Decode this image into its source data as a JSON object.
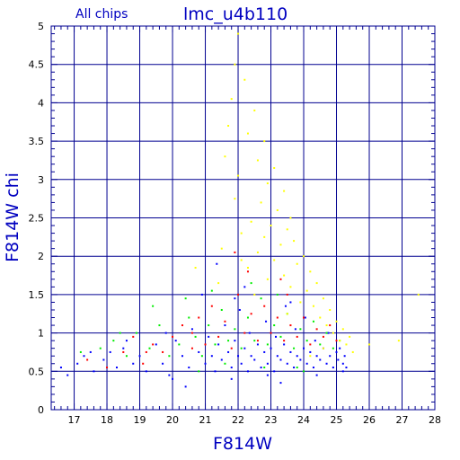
{
  "chart_data": {
    "type": "scatter",
    "title": "lmc_u4b110",
    "subtitle": "All chips",
    "xlabel": "F814W",
    "ylabel": "F814W  chi",
    "xlim": [
      16.3,
      28
    ],
    "ylim": [
      0,
      5
    ],
    "x_ticks": [
      17,
      18,
      19,
      20,
      21,
      22,
      23,
      24,
      25,
      26,
      27,
      28
    ],
    "y_ticks": [
      0,
      0.5,
      1,
      1.5,
      2,
      2.5,
      3,
      3.5,
      4,
      4.5,
      5
    ],
    "x_tick_labels": [
      "17",
      "18",
      "19",
      "20",
      "21",
      "22",
      "23",
      "24",
      "25",
      "26",
      "27",
      "28"
    ],
    "y_tick_labels": [
      "0",
      "0.5",
      "1",
      "1.5",
      "2",
      "2.5",
      "3",
      "3.5",
      "4",
      "4.5",
      "5"
    ],
    "grid": true,
    "colors": {
      "frame": "#000090",
      "grid": "#000090",
      "text": "#0000c0",
      "blue": "#0000ff",
      "green": "#00ee00",
      "red": "#ff0000",
      "yellow": "#ffff00"
    },
    "series": [
      {
        "color": "#0000ff",
        "points": [
          [
            16.6,
            0.55
          ],
          [
            16.8,
            0.45
          ],
          [
            17.1,
            0.6
          ],
          [
            17.3,
            0.7
          ],
          [
            17.6,
            0.5
          ],
          [
            17.9,
            0.65
          ],
          [
            18.1,
            0.75
          ],
          [
            18.3,
            0.55
          ],
          [
            18.5,
            0.8
          ],
          [
            18.8,
            0.6
          ],
          [
            19.0,
            0.7
          ],
          [
            19.2,
            0.5
          ],
          [
            19.5,
            0.85
          ],
          [
            19.7,
            0.6
          ],
          [
            19.9,
            0.45
          ],
          [
            20.1,
            0.9
          ],
          [
            20.3,
            0.7
          ],
          [
            20.5,
            0.55
          ],
          [
            20.6,
            1.05
          ],
          [
            20.8,
            0.75
          ],
          [
            21.0,
            0.6
          ],
          [
            21.1,
            0.95
          ],
          [
            21.2,
            0.7
          ],
          [
            21.3,
            0.5
          ],
          [
            21.4,
            0.85
          ],
          [
            21.5,
            0.65
          ],
          [
            21.6,
            1.1
          ],
          [
            21.7,
            0.75
          ],
          [
            21.8,
            0.55
          ],
          [
            21.9,
            0.9
          ],
          [
            22.0,
            0.7
          ],
          [
            22.05,
            1.3
          ],
          [
            22.1,
            0.6
          ],
          [
            22.2,
            0.8
          ],
          [
            22.3,
            0.5
          ],
          [
            22.35,
            1.0
          ],
          [
            22.4,
            0.7
          ],
          [
            22.5,
            0.65
          ],
          [
            22.6,
            0.85
          ],
          [
            22.7,
            0.55
          ],
          [
            22.8,
            0.75
          ],
          [
            22.85,
            1.15
          ],
          [
            22.9,
            0.6
          ],
          [
            23.0,
            0.8
          ],
          [
            23.1,
            0.5
          ],
          [
            23.15,
            0.95
          ],
          [
            23.2,
            0.7
          ],
          [
            23.3,
            0.65
          ],
          [
            23.4,
            0.85
          ],
          [
            23.45,
            1.35
          ],
          [
            23.5,
            0.6
          ],
          [
            23.6,
            0.75
          ],
          [
            23.7,
            0.55
          ],
          [
            23.75,
            1.05
          ],
          [
            23.8,
            0.7
          ],
          [
            23.9,
            0.65
          ],
          [
            24.0,
            0.8
          ],
          [
            24.05,
            1.2
          ],
          [
            24.1,
            0.6
          ],
          [
            24.2,
            0.75
          ],
          [
            24.3,
            0.55
          ],
          [
            24.35,
            0.9
          ],
          [
            24.4,
            0.7
          ],
          [
            24.5,
            0.65
          ],
          [
            24.6,
            0.8
          ],
          [
            24.7,
            0.6
          ],
          [
            24.75,
            1.0
          ],
          [
            24.8,
            0.7
          ],
          [
            24.9,
            0.55
          ],
          [
            25.0,
            0.75
          ],
          [
            25.05,
            0.65
          ],
          [
            25.1,
            0.8
          ],
          [
            25.2,
            0.6
          ],
          [
            25.25,
            0.7
          ],
          [
            25.3,
            0.55
          ],
          [
            21.35,
            1.9
          ],
          [
            22.2,
            1.6
          ],
          [
            21.9,
            1.45
          ],
          [
            20.9,
            1.5
          ],
          [
            23.6,
            1.4
          ],
          [
            19.8,
            1.0
          ],
          [
            18.6,
            0.9
          ],
          [
            17.5,
            0.75
          ],
          [
            20.0,
            0.4
          ],
          [
            21.8,
            0.4
          ],
          [
            22.9,
            0.45
          ],
          [
            24.4,
            0.45
          ],
          [
            20.4,
            0.3
          ],
          [
            23.3,
            0.35
          ],
          [
            25.2,
            0.5
          ]
        ]
      },
      {
        "color": "#00ee00",
        "points": [
          [
            17.2,
            0.75
          ],
          [
            17.8,
            0.8
          ],
          [
            18.2,
            0.9
          ],
          [
            18.6,
            0.7
          ],
          [
            18.9,
            1.0
          ],
          [
            19.3,
            0.8
          ],
          [
            19.6,
            1.1
          ],
          [
            19.9,
            0.7
          ],
          [
            20.2,
            0.85
          ],
          [
            20.5,
            1.2
          ],
          [
            20.7,
            0.95
          ],
          [
            20.9,
            0.7
          ],
          [
            21.1,
            1.1
          ],
          [
            21.3,
            0.85
          ],
          [
            21.5,
            1.3
          ],
          [
            21.7,
            0.9
          ],
          [
            21.9,
            1.05
          ],
          [
            22.1,
            0.8
          ],
          [
            22.3,
            1.2
          ],
          [
            22.5,
            0.9
          ],
          [
            22.7,
            1.45
          ],
          [
            22.9,
            0.85
          ],
          [
            23.1,
            1.1
          ],
          [
            23.3,
            0.95
          ],
          [
            23.5,
            1.25
          ],
          [
            23.7,
            0.8
          ],
          [
            23.9,
            1.05
          ],
          [
            24.1,
            0.9
          ],
          [
            24.3,
            1.15
          ],
          [
            24.5,
            0.85
          ],
          [
            24.7,
            1.0
          ],
          [
            24.9,
            0.8
          ],
          [
            25.1,
            0.9
          ],
          [
            21.2,
            1.55
          ],
          [
            22.4,
            1.65
          ],
          [
            23.2,
            1.5
          ],
          [
            20.4,
            1.45
          ],
          [
            19.4,
            1.35
          ],
          [
            18.4,
            1.0
          ],
          [
            24.0,
            0.5
          ],
          [
            22.8,
            0.55
          ],
          [
            21.6,
            0.6
          ],
          [
            20.8,
            0.5
          ],
          [
            23.8,
            0.55
          ]
        ]
      },
      {
        "color": "#ff0000",
        "points": [
          [
            17.4,
            0.65
          ],
          [
            18.0,
            0.55
          ],
          [
            18.5,
            0.75
          ],
          [
            18.8,
            0.95
          ],
          [
            19.1,
            0.6
          ],
          [
            19.4,
            0.85
          ],
          [
            19.7,
            0.75
          ],
          [
            20.0,
            0.95
          ],
          [
            20.3,
            1.1
          ],
          [
            20.6,
            0.8
          ],
          [
            20.8,
            1.2
          ],
          [
            21.0,
            0.85
          ],
          [
            21.2,
            1.35
          ],
          [
            21.4,
            0.95
          ],
          [
            21.6,
            1.15
          ],
          [
            21.8,
            0.8
          ],
          [
            22.0,
            1.5
          ],
          [
            22.2,
            1.0
          ],
          [
            22.4,
            1.25
          ],
          [
            22.6,
            0.9
          ],
          [
            22.8,
            1.35
          ],
          [
            23.0,
            1.0
          ],
          [
            23.2,
            1.2
          ],
          [
            23.4,
            0.9
          ],
          [
            23.6,
            1.1
          ],
          [
            23.8,
            0.95
          ],
          [
            24.0,
            1.2
          ],
          [
            24.2,
            0.85
          ],
          [
            24.4,
            1.05
          ],
          [
            24.6,
            0.95
          ],
          [
            24.8,
            1.1
          ],
          [
            25.0,
            0.9
          ],
          [
            22.3,
            1.8
          ],
          [
            23.3,
            1.7
          ],
          [
            21.9,
            2.05
          ],
          [
            20.6,
            1.0
          ],
          [
            19.2,
            0.75
          ],
          [
            23.5,
            1.5
          ]
        ]
      },
      {
        "color": "#ffff00",
        "points": [
          [
            22.0,
            4.9
          ],
          [
            21.9,
            4.5
          ],
          [
            22.2,
            4.3
          ],
          [
            21.8,
            4.05
          ],
          [
            22.5,
            3.9
          ],
          [
            21.7,
            3.7
          ],
          [
            22.3,
            3.6
          ],
          [
            22.8,
            3.5
          ],
          [
            21.6,
            3.3
          ],
          [
            22.6,
            3.25
          ],
          [
            23.1,
            3.15
          ],
          [
            22.0,
            3.05
          ],
          [
            22.9,
            2.95
          ],
          [
            23.4,
            2.85
          ],
          [
            21.9,
            2.75
          ],
          [
            22.7,
            2.7
          ],
          [
            23.2,
            2.6
          ],
          [
            23.6,
            2.5
          ],
          [
            22.4,
            2.45
          ],
          [
            23.0,
            2.4
          ],
          [
            23.5,
            2.35
          ],
          [
            22.1,
            2.3
          ],
          [
            22.8,
            2.25
          ],
          [
            23.7,
            2.2
          ],
          [
            23.3,
            2.15
          ],
          [
            21.5,
            2.1
          ],
          [
            22.6,
            2.05
          ],
          [
            24.0,
            2.0
          ],
          [
            23.1,
            1.95
          ],
          [
            23.8,
            1.9
          ],
          [
            22.3,
            1.85
          ],
          [
            24.2,
            1.8
          ],
          [
            23.4,
            1.75
          ],
          [
            22.9,
            1.7
          ],
          [
            24.4,
            1.65
          ],
          [
            23.6,
            1.6
          ],
          [
            24.1,
            1.55
          ],
          [
            22.5,
            1.5
          ],
          [
            24.6,
            1.45
          ],
          [
            23.9,
            1.4
          ],
          [
            24.3,
            1.35
          ],
          [
            24.8,
            1.3
          ],
          [
            23.5,
            1.25
          ],
          [
            24.5,
            1.2
          ],
          [
            25.0,
            1.15
          ],
          [
            24.7,
            1.1
          ],
          [
            25.2,
            1.05
          ],
          [
            24.9,
            1.0
          ],
          [
            25.4,
            0.95
          ],
          [
            25.1,
            0.9
          ],
          [
            25.3,
            0.85
          ],
          [
            24.6,
            0.8
          ],
          [
            25.5,
            0.75
          ],
          [
            24.2,
            0.7
          ],
          [
            27.5,
            1.5
          ],
          [
            26.9,
            0.9
          ],
          [
            26.0,
            0.85
          ],
          [
            20.7,
            1.85
          ],
          [
            21.4,
            1.65
          ],
          [
            22.1,
            1.95
          ]
        ]
      }
    ]
  }
}
